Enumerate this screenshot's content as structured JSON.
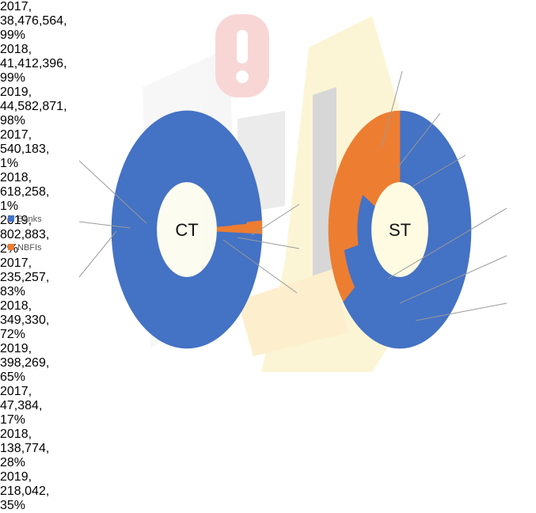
{
  "chart_data": [
    {
      "type": "donut",
      "center_label": "CT",
      "categories": [
        "2017",
        "2018",
        "2019"
      ],
      "series": [
        {
          "name": "Banks",
          "color": "#4472c4",
          "values": [
            38476564,
            41412396,
            44582871
          ],
          "value_labels": [
            "2017, 38,476,564, 99%",
            "2018, 41,412,396, 99%",
            "2019, 44,582,871, 98%"
          ]
        },
        {
          "name": "NBFIs",
          "color": "#ed7d31",
          "values": [
            540183,
            618258,
            802883
          ],
          "value_labels": [
            "2017, 540,183, 1%",
            "2018, 618,258, 1%",
            "2019, 802,883, 2%"
          ]
        }
      ]
    },
    {
      "type": "donut",
      "center_label": "ST",
      "categories": [
        "2017",
        "2018",
        "2019"
      ],
      "series": [
        {
          "color": "#4472c4",
          "values": [
            235257,
            349330,
            398269
          ],
          "value_labels": [
            "2017, 235,257, 83%",
            "2018, 349,330, 72%",
            "2019, 398,269, 65%"
          ]
        },
        {
          "color": "#ed7d31",
          "values": [
            47384,
            138774,
            218042
          ],
          "value_labels": [
            "2017, 47,384, 17%",
            "2018, 138,774, 28%",
            "2019, 218,042, 35%"
          ]
        }
      ]
    }
  ]
}
